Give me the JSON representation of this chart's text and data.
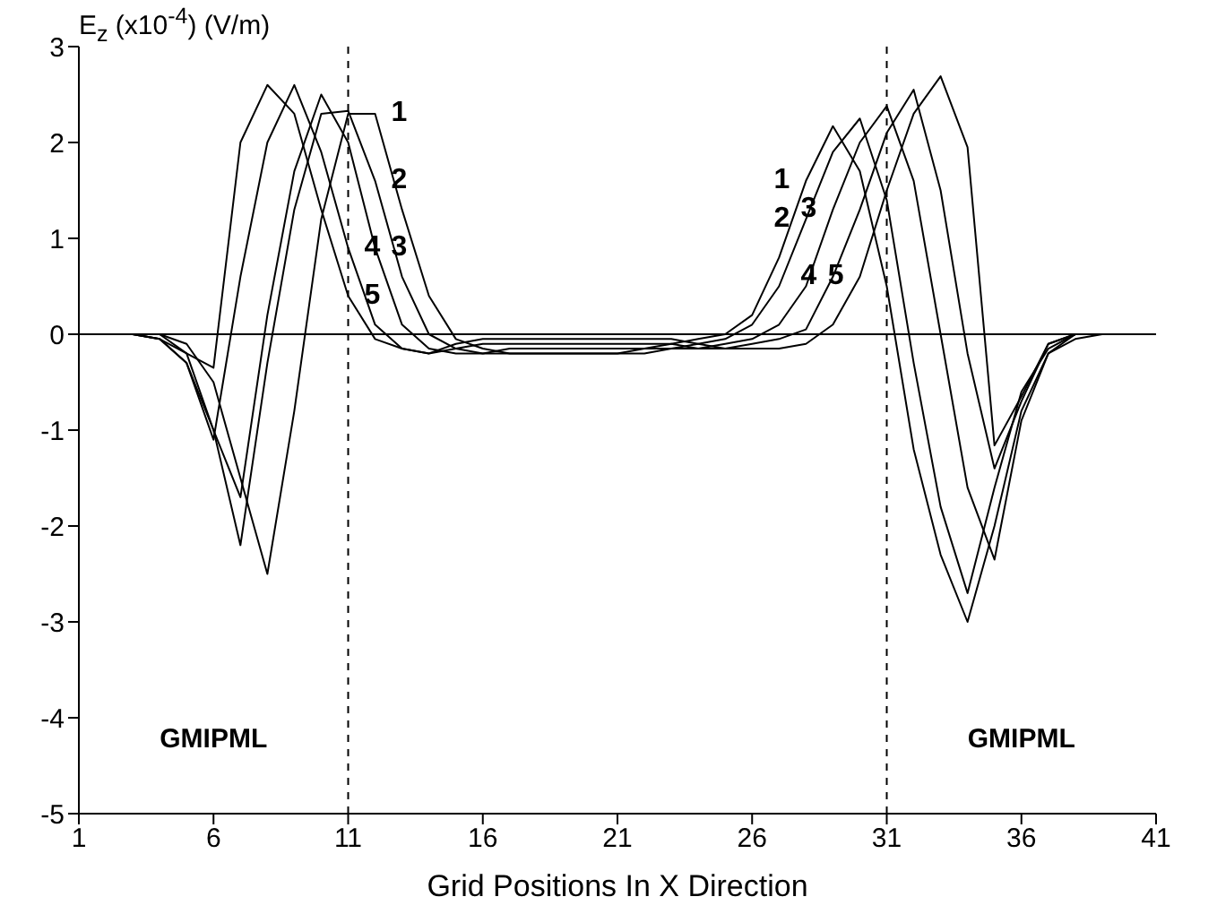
{
  "chart_data": {
    "type": "line",
    "ylabel": "E$_{z}$ (x10$^{-4}$) (V/m)",
    "xlabel": "Grid Positions In X Direction",
    "x": [
      1,
      2,
      3,
      4,
      5,
      6,
      7,
      8,
      9,
      10,
      11,
      12,
      13,
      14,
      15,
      16,
      17,
      18,
      19,
      20,
      21,
      22,
      23,
      24,
      25,
      26,
      27,
      28,
      29,
      30,
      31,
      32,
      33,
      34,
      35,
      36,
      37,
      38,
      39,
      40,
      41
    ],
    "series": [
      {
        "color": "#000000",
        "values": [
          0,
          0,
          0,
          0,
          -0.1,
          -0.5,
          -1.5,
          -2.5,
          -0.8,
          1.2,
          2.3,
          2.3,
          1.3,
          0.4,
          -0.05,
          -0.15,
          -0.2,
          -0.2,
          -0.2,
          -0.2,
          -0.2,
          -0.15,
          -0.1,
          -0.05,
          0,
          0.2,
          0.8,
          1.6,
          2.17,
          1.7,
          0.5,
          -1.2,
          -2.3,
          -3.0,
          -2.0,
          -0.8,
          -0.2,
          -0.05,
          0,
          0,
          0
        ]
      },
      {
        "color": "#000000",
        "values": [
          0,
          0,
          0,
          0,
          -0.2,
          -1.0,
          -2.2,
          -0.3,
          1.3,
          2.3,
          2.33,
          1.6,
          0.6,
          0,
          -0.15,
          -0.2,
          -0.2,
          -0.2,
          -0.2,
          -0.2,
          -0.2,
          -0.2,
          -0.15,
          -0.1,
          -0.05,
          0.1,
          0.5,
          1.2,
          1.9,
          2.25,
          1.4,
          -0.3,
          -1.8,
          -2.7,
          -1.6,
          -0.6,
          -0.15,
          0,
          0,
          0,
          0
        ]
      },
      {
        "color": "#000000",
        "values": [
          0,
          0,
          0,
          -0.05,
          -0.3,
          -1.0,
          -1.7,
          0.2,
          1.7,
          2.5,
          2.0,
          0.9,
          0.1,
          -0.15,
          -0.2,
          -0.2,
          -0.15,
          -0.15,
          -0.15,
          -0.15,
          -0.15,
          -0.15,
          -0.15,
          -0.15,
          -0.1,
          -0.05,
          0.1,
          0.5,
          1.3,
          2.0,
          2.38,
          1.6,
          0,
          -1.6,
          -2.35,
          -0.9,
          -0.2,
          0,
          0,
          0,
          0
        ]
      },
      {
        "color": "#000000",
        "values": [
          0,
          0,
          0,
          -0.05,
          -0.3,
          -1.1,
          0.6,
          2.0,
          2.6,
          1.9,
          0.9,
          0.1,
          -0.15,
          -0.2,
          -0.15,
          -0.1,
          -0.1,
          -0.1,
          -0.1,
          -0.1,
          -0.1,
          -0.1,
          -0.1,
          -0.15,
          -0.15,
          -0.1,
          -0.05,
          0.05,
          0.6,
          1.3,
          2.1,
          2.55,
          1.5,
          -0.2,
          -1.4,
          -0.7,
          -0.1,
          0,
          0,
          0,
          0
        ]
      },
      {
        "color": "#000000",
        "values": [
          0,
          0,
          0,
          -0.05,
          -0.2,
          -0.35,
          2.0,
          2.6,
          2.3,
          1.3,
          0.4,
          -0.05,
          -0.15,
          -0.2,
          -0.1,
          -0.05,
          -0.05,
          -0.05,
          -0.05,
          -0.05,
          -0.05,
          -0.05,
          -0.05,
          -0.1,
          -0.15,
          -0.15,
          -0.15,
          -0.1,
          0.1,
          0.6,
          1.5,
          2.3,
          2.69,
          1.95,
          -1.16,
          -0.65,
          -0.1,
          0,
          0,
          0,
          0
        ]
      }
    ],
    "xlim": [
      1,
      41
    ],
    "xticks": [
      1,
      6,
      11,
      16,
      21,
      26,
      31,
      36,
      41
    ],
    "ylim": [
      -5,
      3
    ],
    "yticks": [
      -5,
      -4,
      -3,
      -2,
      -1,
      0,
      1,
      2,
      3
    ],
    "ref_lines": [
      {
        "axis": "x",
        "value": 11,
        "line_style": "dashed",
        "color": "#000000"
      },
      {
        "axis": "x",
        "value": 31,
        "line_style": "dashed",
        "color": "#000000"
      },
      {
        "axis": "y",
        "value": 0,
        "line_style": "solid",
        "color": "#000000"
      }
    ],
    "annotations": [
      {
        "text": "1",
        "x": 12,
        "y": 2.3
      },
      {
        "text": "2",
        "x": 12,
        "y": 1.6
      },
      {
        "text": "3",
        "x": 12,
        "y": 0.9
      },
      {
        "text": "4",
        "x": 11,
        "y": 0.9
      },
      {
        "text": "5",
        "x": 11,
        "y": 0.4
      },
      {
        "text": "1",
        "x": 28,
        "y": 1.6
      },
      {
        "text": "2",
        "x": 28,
        "y": 1.2
      },
      {
        "text": "3",
        "x": 29,
        "y": 1.3
      },
      {
        "text": "4",
        "x": 29,
        "y": 0.6
      },
      {
        "text": "5",
        "x": 30,
        "y": 0.6
      },
      "GMIPML",
      "GMIPML"
    ],
    "grid": false,
    "legend": false,
    "marker": "none",
    "line_style": "solid"
  }
}
